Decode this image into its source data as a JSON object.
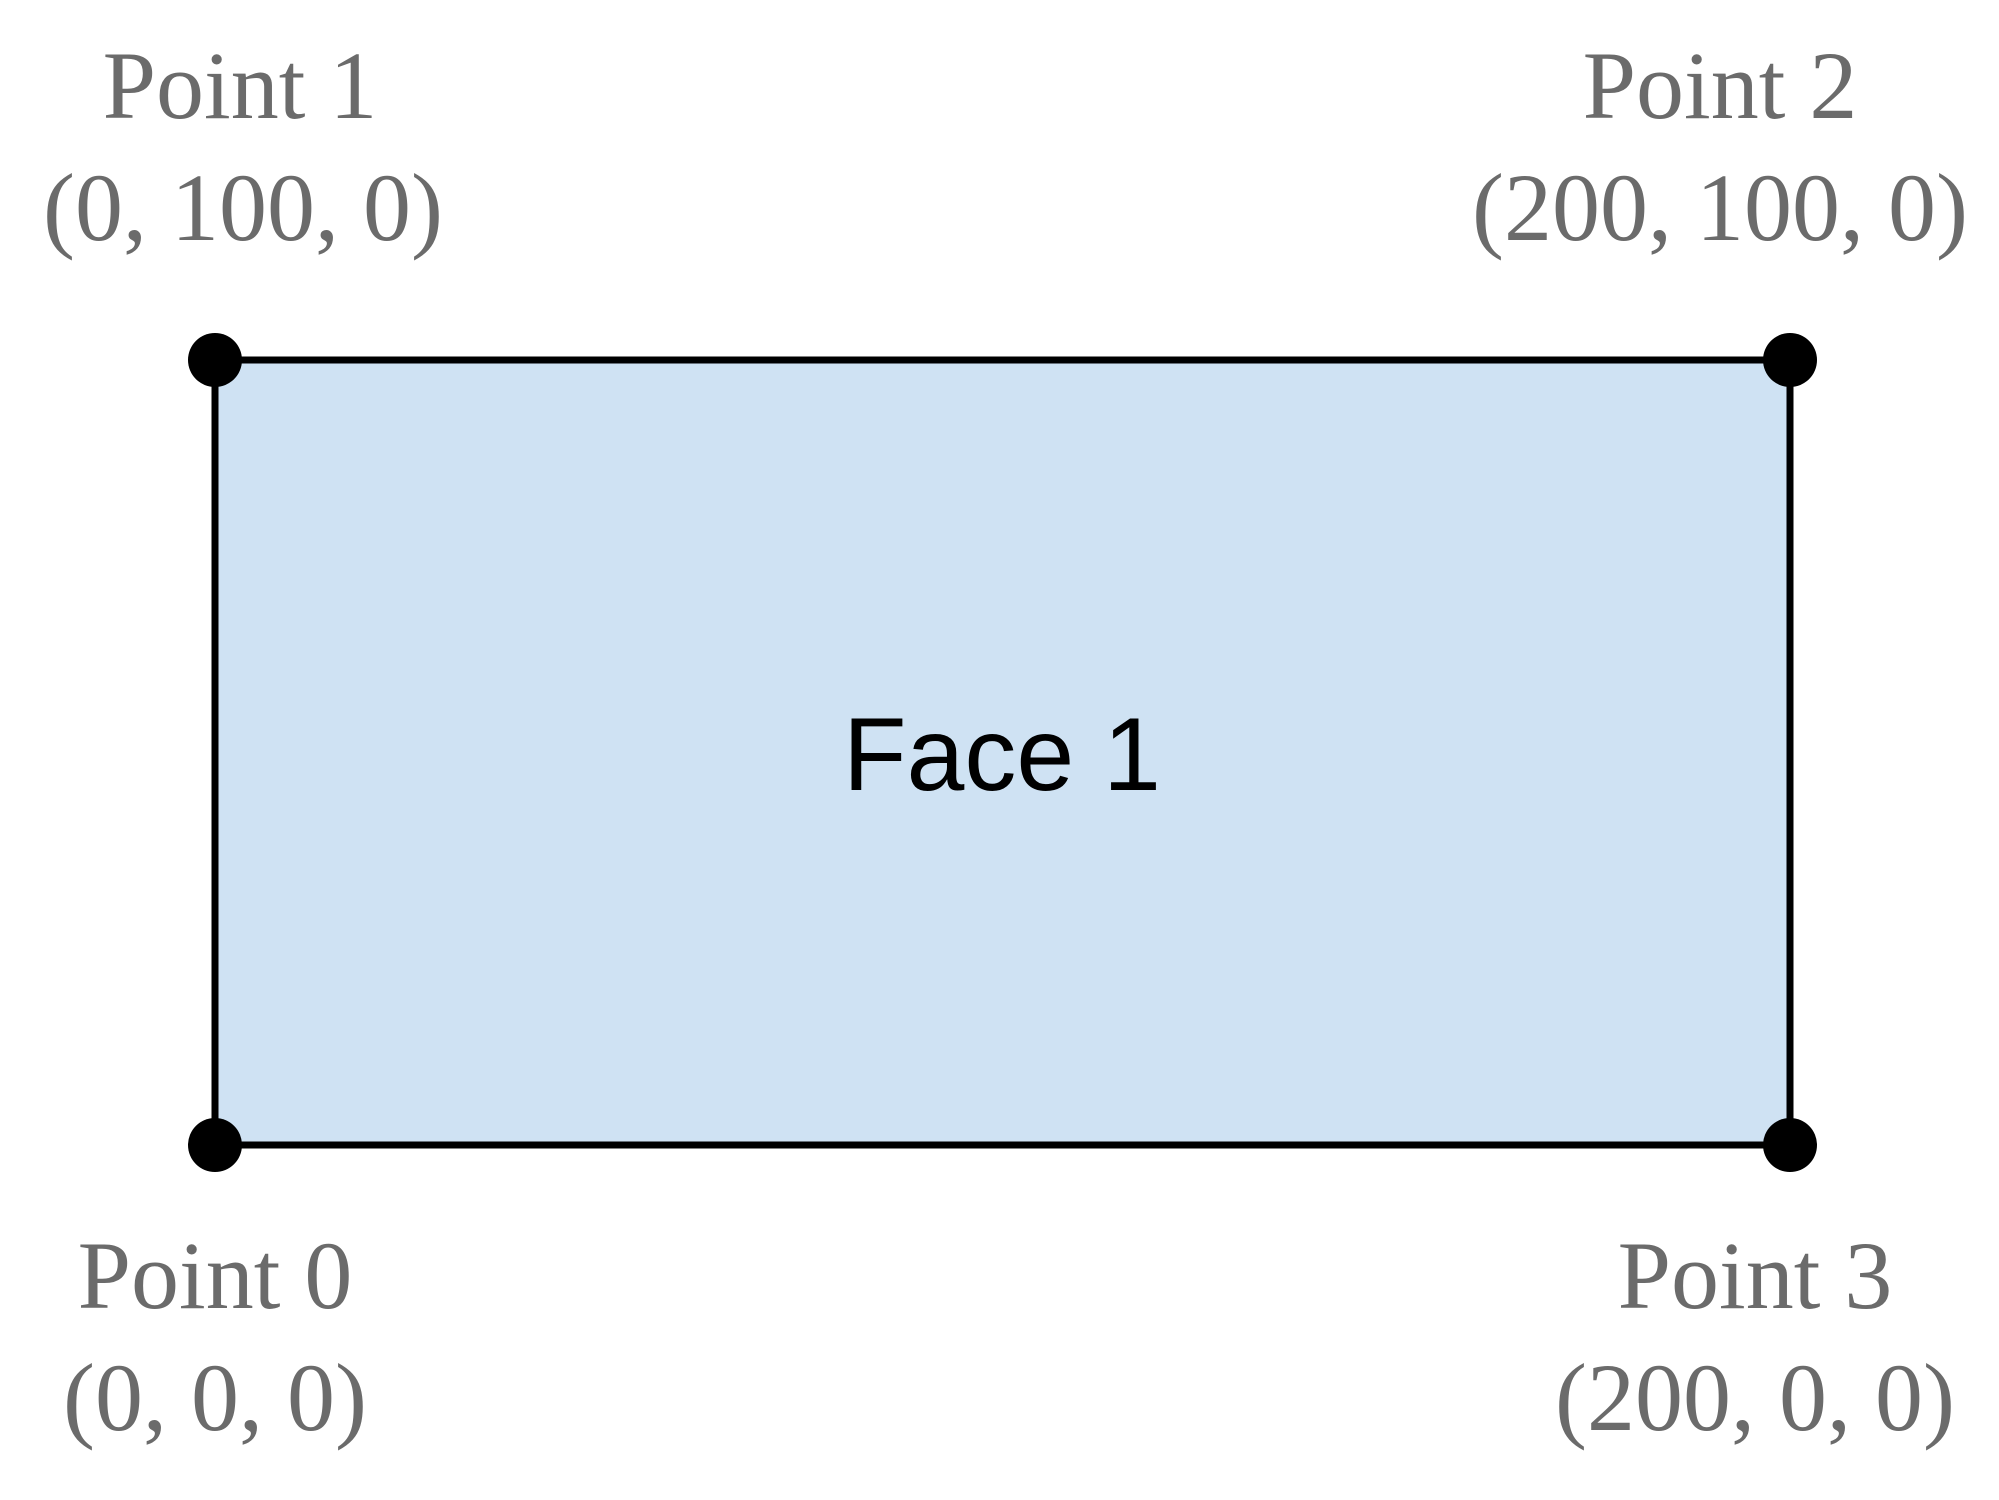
{
  "colors": {
    "face_fill": "#cfe2f3",
    "edge": "#000000",
    "vertex": "#000000",
    "point_text": "#6b6b6b",
    "face_text": "#000000"
  },
  "face": {
    "label": "Face 1"
  },
  "points": [
    {
      "name": "Point 0",
      "coords": "(0, 0, 0)"
    },
    {
      "name": "Point 1",
      "coords": "(0, 100, 0)"
    },
    {
      "name": "Point 2",
      "coords": "(200, 100, 0)"
    },
    {
      "name": "Point 3",
      "coords": "(200, 0, 0)"
    }
  ]
}
